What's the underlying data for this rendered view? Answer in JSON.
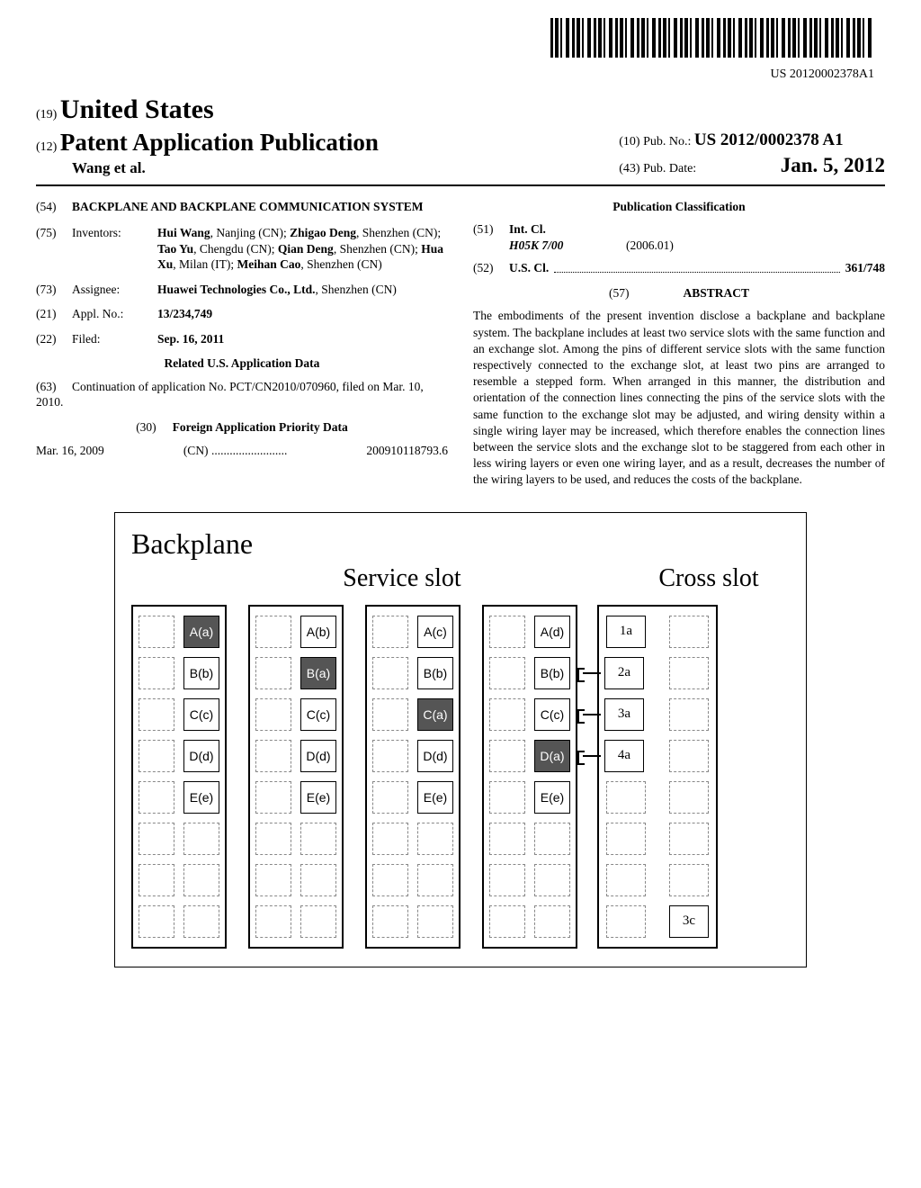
{
  "barcode_sub": "US 20120002378A1",
  "header": {
    "line1_num": "(19)",
    "line1_text": "United States",
    "line2_num": "(12)",
    "line2_text": "Patent Application Publication",
    "authors": "Wang et al.",
    "pubno_num": "(10)",
    "pubno_label": "Pub. No.:",
    "pubno_value": "US 2012/0002378 A1",
    "pubdate_num": "(43)",
    "pubdate_label": "Pub. Date:",
    "pubdate_value": "Jan. 5, 2012"
  },
  "left": {
    "title_num": "(54)",
    "title": "BACKPLANE AND BACKPLANE COMMUNICATION SYSTEM",
    "inventors_num": "(75)",
    "inventors_label": "Inventors:",
    "inventors_value": "<b>Hui Wang</b>, Nanjing (CN); <b>Zhigao Deng</b>, Shenzhen (CN); <b>Tao Yu</b>, Chengdu (CN); <b>Qian Deng</b>, Shenzhen (CN); <b>Hua Xu</b>, Milan (IT); <b>Meihan Cao</b>, Shenzhen (CN)",
    "assignee_num": "(73)",
    "assignee_label": "Assignee:",
    "assignee_value": "<b>Huawei Technologies Co., Ltd.</b>, Shenzhen (CN)",
    "applno_num": "(21)",
    "applno_label": "Appl. No.:",
    "applno_value": "13/234,749",
    "filed_num": "(22)",
    "filed_label": "Filed:",
    "filed_value": "Sep. 16, 2011",
    "related_title": "Related U.S. Application Data",
    "related_num": "(63)",
    "related_text": "Continuation of application No. PCT/CN2010/070960, filed on Mar. 10, 2010.",
    "foreign_num": "(30)",
    "foreign_title": "Foreign Application Priority Data",
    "foreign_date": "Mar. 16, 2009",
    "foreign_country": "(CN)",
    "foreign_appno": "200910118793.6"
  },
  "right": {
    "pubclass_title": "Publication Classification",
    "intcl_num": "(51)",
    "intcl_label": "Int. Cl.",
    "intcl_code": "H05K 7/00",
    "intcl_year": "(2006.01)",
    "uscl_num": "(52)",
    "uscl_label": "U.S. Cl.",
    "uscl_value": "361/748",
    "abstract_num": "(57)",
    "abstract_label": "ABSTRACT",
    "abstract_text": "The embodiments of the present invention disclose a backplane and backplane system. The backplane includes at least two service slots with the same function and an exchange slot. Among the pins of different service slots with the same function respectively connected to the exchange slot, at least two pins are arranged to resemble a stepped form. When arranged in this manner, the distribution and orientation of the connection lines connecting the pins of the service slots with the same function to the exchange slot may be adjusted, and wiring density within a single wiring layer may be increased, which therefore enables the connection lines between the service slots and the exchange slot to be staggered from each other in less wiring layers or even one wiring layer, and as a result, decreases the number of the wiring layers to be used, and reduces the costs of the backplane."
  },
  "figure": {
    "title": "Backplane",
    "service_label": "Service slot",
    "cross_label": "Cross slot",
    "service_cols": [
      {
        "filled_idx": 0,
        "pins": [
          "A(a)",
          "B(b)",
          "C(c)",
          "D(d)",
          "E(e)",
          "",
          "",
          ""
        ]
      },
      {
        "filled_idx": 1,
        "pins": [
          "A(b)",
          "B(a)",
          "C(c)",
          "D(d)",
          "E(e)",
          "",
          "",
          ""
        ]
      },
      {
        "filled_idx": 2,
        "pins": [
          "A(c)",
          "B(b)",
          "C(a)",
          "D(d)",
          "E(e)",
          "",
          "",
          ""
        ]
      },
      {
        "filled_idx": 3,
        "pins": [
          "A(d)",
          "B(b)",
          "C(c)",
          "D(a)",
          "E(e)",
          "",
          "",
          ""
        ]
      }
    ],
    "cross_rows": [
      {
        "left_label": "1a",
        "stub": false
      },
      {
        "left_label": "2a",
        "stub": true
      },
      {
        "left_label": "3a",
        "stub": true
      },
      {
        "left_label": "4a",
        "stub": true
      },
      {
        "left_label": "",
        "stub": false
      },
      {
        "left_label": "",
        "stub": false
      },
      {
        "left_label": "",
        "stub": false
      },
      {
        "left_label": "",
        "right_label": "3c",
        "stub": false
      }
    ]
  }
}
